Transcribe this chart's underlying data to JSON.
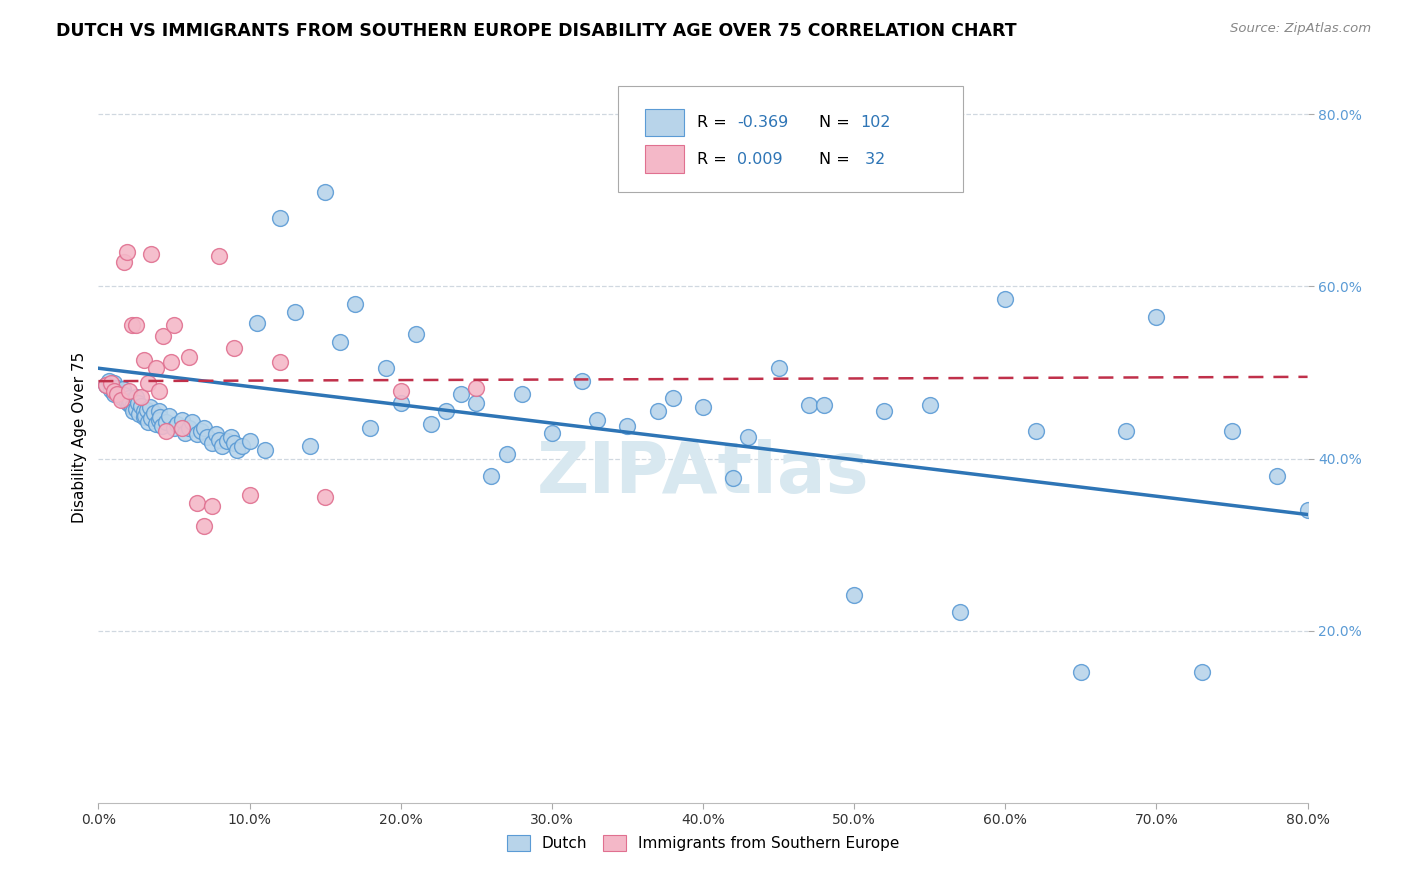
{
  "title": "DUTCH VS IMMIGRANTS FROM SOUTHERN EUROPE DISABILITY AGE OVER 75 CORRELATION CHART",
  "source": "Source: ZipAtlas.com",
  "ylabel": "Disability Age Over 75",
  "xlim": [
    0.0,
    0.8
  ],
  "ylim": [
    0.0,
    0.85
  ],
  "dutch_R": -0.369,
  "dutch_N": 102,
  "immig_R": 0.009,
  "immig_N": 32,
  "dutch_color": "#b8d4ea",
  "dutch_edge_color": "#5b9bd5",
  "dutch_line_color": "#2e75b6",
  "immig_color": "#f4b8c8",
  "immig_edge_color": "#e07090",
  "immig_line_color": "#c0304a",
  "background_color": "#ffffff",
  "grid_color": "#d0d8e0",
  "watermark_color": "#d8e8f0",
  "right_axis_color": "#5b9bd5",
  "dutch_x": [
    0.005,
    0.007,
    0.008,
    0.01,
    0.01,
    0.012,
    0.013,
    0.015,
    0.015,
    0.016,
    0.017,
    0.018,
    0.019,
    0.02,
    0.02,
    0.021,
    0.022,
    0.023,
    0.025,
    0.025,
    0.026,
    0.027,
    0.028,
    0.03,
    0.03,
    0.031,
    0.032,
    0.033,
    0.034,
    0.035,
    0.037,
    0.038,
    0.04,
    0.04,
    0.041,
    0.042,
    0.045,
    0.047,
    0.05,
    0.052,
    0.055,
    0.057,
    0.06,
    0.062,
    0.065,
    0.068,
    0.07,
    0.072,
    0.075,
    0.078,
    0.08,
    0.082,
    0.085,
    0.088,
    0.09,
    0.092,
    0.095,
    0.1,
    0.105,
    0.11,
    0.12,
    0.13,
    0.14,
    0.15,
    0.16,
    0.17,
    0.18,
    0.19,
    0.2,
    0.21,
    0.22,
    0.23,
    0.24,
    0.25,
    0.26,
    0.27,
    0.28,
    0.3,
    0.32,
    0.33,
    0.35,
    0.37,
    0.38,
    0.4,
    0.42,
    0.43,
    0.45,
    0.47,
    0.48,
    0.5,
    0.52,
    0.55,
    0.57,
    0.6,
    0.62,
    0.65,
    0.68,
    0.7,
    0.73,
    0.75,
    0.78,
    0.8
  ],
  "dutch_y": [
    0.485,
    0.49,
    0.48,
    0.475,
    0.488,
    0.482,
    0.478,
    0.472,
    0.476,
    0.481,
    0.474,
    0.469,
    0.466,
    0.47,
    0.463,
    0.467,
    0.46,
    0.455,
    0.472,
    0.458,
    0.465,
    0.452,
    0.461,
    0.448,
    0.455,
    0.45,
    0.457,
    0.443,
    0.46,
    0.447,
    0.453,
    0.44,
    0.455,
    0.445,
    0.448,
    0.438,
    0.442,
    0.45,
    0.435,
    0.44,
    0.445,
    0.43,
    0.435,
    0.442,
    0.428,
    0.432,
    0.435,
    0.425,
    0.418,
    0.428,
    0.422,
    0.415,
    0.42,
    0.425,
    0.418,
    0.41,
    0.415,
    0.42,
    0.558,
    0.41,
    0.68,
    0.57,
    0.415,
    0.71,
    0.535,
    0.58,
    0.435,
    0.505,
    0.465,
    0.545,
    0.44,
    0.455,
    0.475,
    0.465,
    0.38,
    0.405,
    0.475,
    0.43,
    0.49,
    0.445,
    0.438,
    0.455,
    0.47,
    0.46,
    0.378,
    0.425,
    0.505,
    0.462,
    0.462,
    0.242,
    0.455,
    0.462,
    0.222,
    0.585,
    0.432,
    0.152,
    0.432,
    0.565,
    0.152,
    0.432,
    0.38,
    0.34
  ],
  "immig_x": [
    0.005,
    0.008,
    0.01,
    0.012,
    0.015,
    0.017,
    0.019,
    0.02,
    0.022,
    0.025,
    0.028,
    0.03,
    0.033,
    0.035,
    0.038,
    0.04,
    0.043,
    0.045,
    0.048,
    0.05,
    0.055,
    0.06,
    0.065,
    0.07,
    0.075,
    0.08,
    0.09,
    0.1,
    0.12,
    0.15,
    0.2,
    0.25
  ],
  "immig_y": [
    0.485,
    0.488,
    0.478,
    0.475,
    0.468,
    0.628,
    0.64,
    0.478,
    0.555,
    0.555,
    0.472,
    0.515,
    0.488,
    0.638,
    0.505,
    0.478,
    0.542,
    0.432,
    0.512,
    0.555,
    0.435,
    0.518,
    0.348,
    0.322,
    0.345,
    0.635,
    0.528,
    0.358,
    0.512,
    0.355,
    0.478,
    0.482
  ],
  "dutch_line_x0": 0.0,
  "dutch_line_y0": 0.505,
  "dutch_line_x1": 0.8,
  "dutch_line_y1": 0.335,
  "immig_line_x0": 0.0,
  "immig_line_y0": 0.49,
  "immig_line_x1": 0.8,
  "immig_line_y1": 0.495
}
